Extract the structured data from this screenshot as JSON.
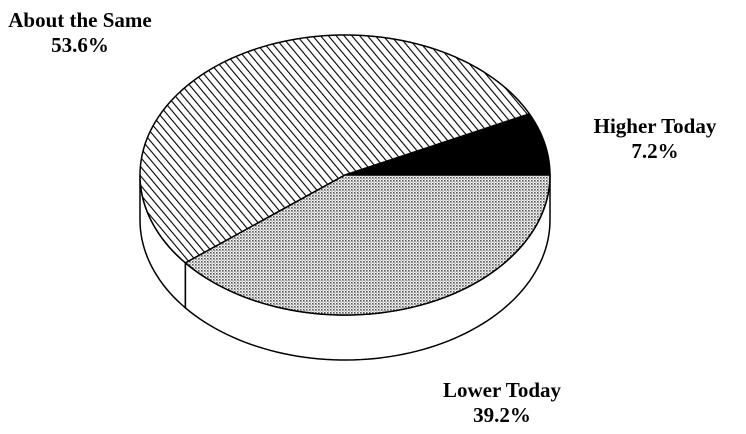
{
  "chart_data": {
    "type": "pie3d",
    "categories": [
      "Higher Today",
      "About the Same",
      "Lower Today"
    ],
    "values": [
      7.2,
      53.6,
      39.2
    ],
    "value_labels": [
      "7.2%",
      "53.6%",
      "39.2%"
    ],
    "patterns": [
      "solid",
      "hatch",
      "dots"
    ]
  }
}
